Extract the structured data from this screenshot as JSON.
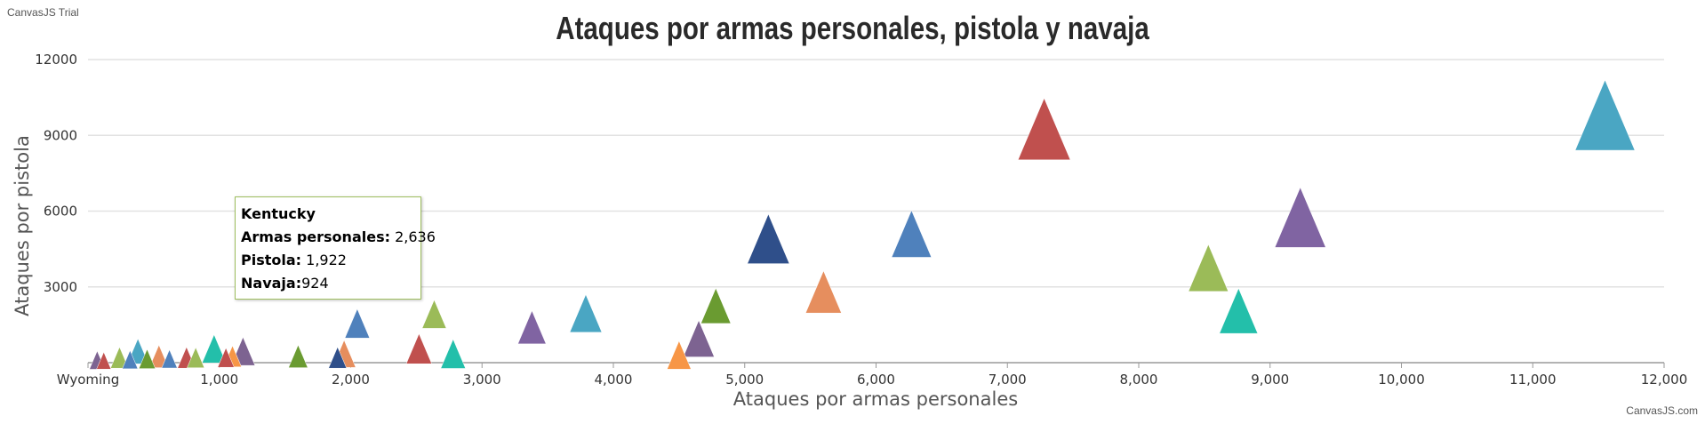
{
  "watermark": "CanvasJS Trial",
  "credit": "CanvasJS.com",
  "chart_data": {
    "type": "scatter",
    "marker": "triangle",
    "title": "Ataques por armas personales, pistola y navaja",
    "xlabel": "Ataques por armas personales",
    "ylabel": "Ataques por pistola",
    "xlim": [
      0,
      12000
    ],
    "ylim": [
      0,
      12000
    ],
    "x_ticks": [
      "Wyoming",
      "1,000",
      "2,000",
      "3,000",
      "4,000",
      "5,000",
      "6,000",
      "7,000",
      "8,000",
      "9,000",
      "10,000",
      "11,000",
      "12,000"
    ],
    "y_ticks": [
      "3000",
      "6000",
      "9000",
      "12000"
    ],
    "grid": true,
    "points": [
      {
        "x": 11550,
        "y": 9800,
        "z": 11000,
        "color": "#4aa6c3"
      },
      {
        "x": 7280,
        "y": 9250,
        "z": 8000,
        "color": "#c0504e"
      },
      {
        "x": 9230,
        "y": 5750,
        "z": 7500,
        "color": "#8064a2"
      },
      {
        "x": 6270,
        "y": 5100,
        "z": 4000,
        "color": "#4f81bc"
      },
      {
        "x": 5180,
        "y": 4900,
        "z": 4600,
        "color": "#2f4f8a"
      },
      {
        "x": 8530,
        "y": 3750,
        "z": 4000,
        "color": "#9bbb58"
      },
      {
        "x": 8760,
        "y": 2050,
        "z": 3600,
        "color": "#23bfaa"
      },
      {
        "x": 5600,
        "y": 2800,
        "z": 3000,
        "color": "#e68e5e"
      },
      {
        "x": 3790,
        "y": 1950,
        "z": 2200,
        "color": "#4aa6c3"
      },
      {
        "x": 4780,
        "y": 2250,
        "z": 1800,
        "color": "#6a9b31"
      },
      {
        "x": 2636,
        "y": 1922,
        "z": 924,
        "color": "#9bbb58",
        "tooltip": true
      },
      {
        "x": 2050,
        "y": 1550,
        "z": 1000,
        "color": "#4f81bc"
      },
      {
        "x": 3380,
        "y": 1400,
        "z": 1500,
        "color": "#8064a2"
      },
      {
        "x": 4650,
        "y": 950,
        "z": 2000,
        "color": "#7d6391"
      },
      {
        "x": 2520,
        "y": 550,
        "z": 1100,
        "color": "#c0504e"
      },
      {
        "x": 2780,
        "y": 350,
        "z": 1000,
        "color": "#23bfaa"
      },
      {
        "x": 4500,
        "y": 300,
        "z": 900,
        "color": "#f79646"
      },
      {
        "x": 1950,
        "y": 350,
        "z": 800,
        "color": "#e68e5e"
      },
      {
        "x": 1600,
        "y": 250,
        "z": 400,
        "color": "#6a9b31"
      },
      {
        "x": 1900,
        "y": 200,
        "z": 300,
        "color": "#2f4f8a"
      },
      {
        "x": 1180,
        "y": 450,
        "z": 900,
        "color": "#7d6391"
      },
      {
        "x": 960,
        "y": 550,
        "z": 900,
        "color": "#23bfaa"
      },
      {
        "x": 1100,
        "y": 250,
        "z": 300,
        "color": "#f79646"
      },
      {
        "x": 1050,
        "y": 200,
        "z": 200,
        "color": "#c0504e"
      },
      {
        "x": 380,
        "y": 450,
        "z": 600,
        "color": "#4aa6c3"
      },
      {
        "x": 540,
        "y": 250,
        "z": 400,
        "color": "#e68e5e"
      },
      {
        "x": 750,
        "y": 200,
        "z": 300,
        "color": "#c0504e"
      },
      {
        "x": 820,
        "y": 200,
        "z": 250,
        "color": "#9bbb58"
      },
      {
        "x": 620,
        "y": 150,
        "z": 150,
        "color": "#4f81bc"
      },
      {
        "x": 240,
        "y": 200,
        "z": 300,
        "color": "#9bbb58"
      },
      {
        "x": 450,
        "y": 150,
        "z": 200,
        "color": "#6a9b31"
      },
      {
        "x": 320,
        "y": 120,
        "z": 150,
        "color": "#4f81bc"
      },
      {
        "x": 70,
        "y": 100,
        "z": 150,
        "color": "#7d6391"
      },
      {
        "x": 120,
        "y": 80,
        "z": 100,
        "color": "#c0504e"
      }
    ]
  },
  "tooltip": {
    "name": "Kentucky",
    "line1_label": "Armas personales:",
    "line1_value": "2,636",
    "line2_label": "Pistola:",
    "line2_value": "1,922",
    "line3_label": "Navaja:",
    "line3_value": "924"
  }
}
